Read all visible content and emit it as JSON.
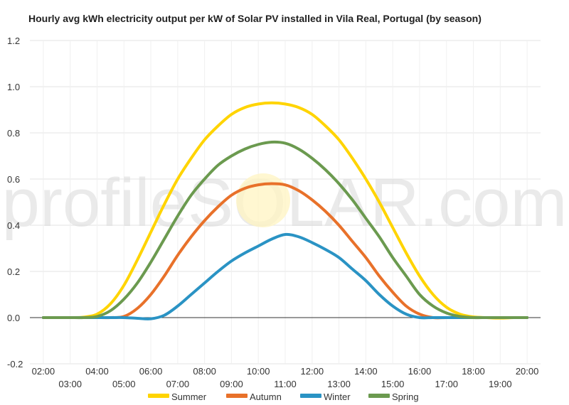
{
  "chart_data": {
    "type": "line",
    "title": "Hourly avg kWh electricity output per kW of Solar PV installed in Vila Real, Portugal (by season)",
    "watermark": "profileSOLAR.com",
    "ylim": [
      -0.2,
      1.2
    ],
    "y_ticks": [
      "1.2",
      "1.0",
      "0.8",
      "0.6",
      "0.4",
      "0.2",
      "0.0",
      "-0.2"
    ],
    "y_tick_values": [
      1.2,
      1.0,
      0.8,
      0.6,
      0.4,
      0.2,
      0.0,
      -0.2
    ],
    "x": [
      2,
      2.5,
      3,
      3.5,
      4,
      4.5,
      5,
      5.5,
      6,
      6.5,
      7,
      7.5,
      8,
      8.5,
      9,
      9.5,
      10,
      10.5,
      11,
      11.5,
      12,
      12.5,
      13,
      13.5,
      14,
      14.5,
      15,
      15.5,
      16,
      16.5,
      17,
      17.5,
      18,
      18.5,
      19,
      19.5,
      20
    ],
    "x_ticks_top": [
      "02:00",
      "04:00",
      "06:00",
      "08:00",
      "10:00",
      "12:00",
      "14:00",
      "16:00",
      "18:00",
      "20:00"
    ],
    "x_ticks_top_values": [
      2,
      4,
      6,
      8,
      10,
      12,
      14,
      16,
      18,
      20
    ],
    "x_ticks_bottom": [
      "03:00",
      "05:00",
      "07:00",
      "09:00",
      "11:00",
      "13:00",
      "15:00",
      "17:00",
      "19:00"
    ],
    "x_ticks_bottom_values": [
      3,
      5,
      7,
      9,
      11,
      13,
      15,
      17,
      19
    ],
    "grid": true,
    "legend_position": "bottom",
    "series": [
      {
        "name": "Summer",
        "color": "#ffd400",
        "values": [
          0,
          0,
          0,
          0.002,
          0.015,
          0.06,
          0.14,
          0.25,
          0.37,
          0.49,
          0.6,
          0.69,
          0.77,
          0.83,
          0.88,
          0.91,
          0.925,
          0.93,
          0.925,
          0.91,
          0.88,
          0.83,
          0.77,
          0.69,
          0.6,
          0.5,
          0.39,
          0.28,
          0.18,
          0.1,
          0.045,
          0.015,
          0.003,
          0,
          -0.002,
          0,
          0
        ]
      },
      {
        "name": "Autumn",
        "color": "#e8712a",
        "values": [
          0,
          0,
          0,
          0,
          0,
          0,
          0.005,
          0.04,
          0.1,
          0.18,
          0.27,
          0.35,
          0.42,
          0.48,
          0.53,
          0.56,
          0.575,
          0.58,
          0.575,
          0.55,
          0.51,
          0.46,
          0.4,
          0.33,
          0.26,
          0.18,
          0.11,
          0.05,
          0.015,
          0,
          0,
          0,
          0,
          0,
          0,
          0,
          0
        ]
      },
      {
        "name": "Winter",
        "color": "#2a93c4",
        "values": [
          0,
          0,
          0,
          0,
          0,
          0,
          0,
          -0.003,
          -0.005,
          0.01,
          0.05,
          0.1,
          0.15,
          0.2,
          0.245,
          0.28,
          0.31,
          0.34,
          0.36,
          0.35,
          0.325,
          0.295,
          0.26,
          0.21,
          0.16,
          0.1,
          0.05,
          0.015,
          0,
          0,
          0,
          0,
          0,
          0,
          0,
          0,
          0
        ]
      },
      {
        "name": "Spring",
        "color": "#6b9a4f",
        "values": [
          0,
          0,
          0,
          0,
          0.005,
          0.03,
          0.08,
          0.15,
          0.24,
          0.34,
          0.44,
          0.53,
          0.6,
          0.66,
          0.7,
          0.73,
          0.75,
          0.76,
          0.755,
          0.73,
          0.69,
          0.64,
          0.58,
          0.51,
          0.43,
          0.35,
          0.26,
          0.18,
          0.1,
          0.05,
          0.02,
          0.005,
          0,
          0,
          0,
          0,
          0
        ]
      }
    ]
  }
}
